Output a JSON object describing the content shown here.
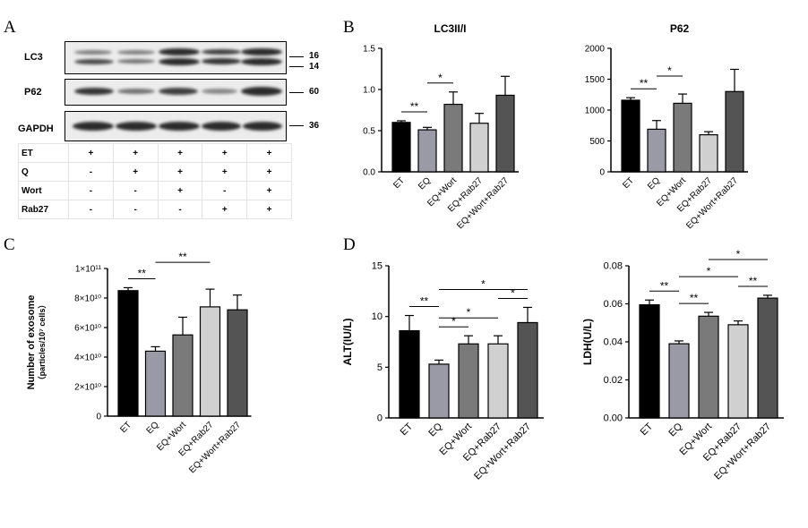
{
  "panel_letters": {
    "a": "A",
    "b": "B",
    "c": "C",
    "d": "D"
  },
  "blot": {
    "rows": [
      {
        "name": "LC3",
        "kda": [
          "16",
          "14"
        ]
      },
      {
        "name": "P62",
        "kda": [
          "60"
        ]
      },
      {
        "name": "GAPDH",
        "kda": [
          "36"
        ]
      }
    ],
    "conditions": [
      {
        "label": "ET",
        "values": [
          "+",
          "+",
          "+",
          "+",
          "+"
        ]
      },
      {
        "label": "Q",
        "values": [
          "-",
          "+",
          "+",
          "+",
          "+"
        ]
      },
      {
        "label": "Wort",
        "values": [
          "-",
          "-",
          "+",
          "-",
          "+"
        ]
      },
      {
        "label": "Rab27",
        "values": [
          "-",
          "-",
          "-",
          "+",
          "+"
        ]
      }
    ]
  },
  "colors": {
    "ET": "#000000",
    "EQ": "#9a9aa6",
    "EQ+Wort": "#7a7a7a",
    "EQ+Rab27": "#d0d0d0",
    "EQ+Wort+Rab27": "#545454"
  },
  "chart_data": [
    {
      "id": "lc3",
      "type": "bar",
      "title": "LC3II/I",
      "ylabel": "",
      "categories": [
        "ET",
        "EQ",
        "EQ+Wort",
        "EQ+Rab27",
        "EQ+Wort+Rab27"
      ],
      "values": [
        0.6,
        0.51,
        0.82,
        0.59,
        0.93
      ],
      "errors": [
        0.02,
        0.03,
        0.15,
        0.12,
        0.23
      ],
      "ylim": [
        0,
        1.5
      ],
      "yticks": [
        "0.0",
        "0.5",
        "1.0",
        "1.5"
      ],
      "significance": [
        {
          "from": "ET",
          "to": "EQ",
          "label": "**"
        },
        {
          "from": "EQ",
          "to": "EQ+Wort",
          "label": "*"
        }
      ]
    },
    {
      "id": "p62",
      "type": "bar",
      "title": "P62",
      "ylabel": "",
      "categories": [
        "ET",
        "EQ",
        "EQ+Wort",
        "EQ+Rab27",
        "EQ+Wort+Rab27"
      ],
      "values": [
        1160,
        690,
        1110,
        600,
        1300
      ],
      "errors": [
        40,
        140,
        150,
        50,
        360
      ],
      "ylim": [
        0,
        2000
      ],
      "yticks": [
        "0",
        "500",
        "1000",
        "1500",
        "2000"
      ],
      "significance": [
        {
          "from": "ET",
          "to": "EQ",
          "label": "**"
        },
        {
          "from": "EQ",
          "to": "EQ+Wort",
          "label": "*"
        }
      ]
    },
    {
      "id": "exo",
      "type": "bar",
      "title": "",
      "ylabel_main": "Number of exosome",
      "ylabel_sub": "（particles/10⁷ cells）",
      "categories": [
        "ET",
        "EQ",
        "EQ+Wort",
        "EQ+Rab27",
        "EQ+Wort+Rab27"
      ],
      "values": [
        85000000000,
        44000000000,
        55000000000,
        74000000000,
        72000000000
      ],
      "errors": [
        2000000000,
        3000000000,
        12000000000,
        12000000000,
        10000000000
      ],
      "ylim": [
        0,
        100000000000
      ],
      "yticks": [
        "0",
        "2×10¹⁰",
        "4×10¹⁰",
        "6×10¹⁰",
        "8×10¹⁰",
        "1×10¹¹"
      ],
      "significance": [
        {
          "from": "ET",
          "to": "EQ",
          "label": "**"
        },
        {
          "from": "EQ",
          "to": "EQ+Rab27",
          "label": "**"
        }
      ]
    },
    {
      "id": "alt",
      "type": "bar",
      "title": "",
      "ylabel": "ALT(IU/L)",
      "categories": [
        "ET",
        "EQ",
        "EQ+Wort",
        "EQ+Rab27",
        "EQ+Wort+Rab27"
      ],
      "values": [
        8.6,
        5.3,
        7.3,
        7.3,
        9.4
      ],
      "errors": [
        1.5,
        0.4,
        0.8,
        0.8,
        1.5
      ],
      "ylim": [
        0,
        15
      ],
      "yticks": [
        "0",
        "5",
        "10",
        "15"
      ],
      "significance": [
        {
          "from": "ET",
          "to": "EQ",
          "label": "**"
        },
        {
          "from": "EQ",
          "to": "EQ+Wort",
          "label": "*"
        },
        {
          "from": "EQ",
          "to": "EQ+Rab27",
          "label": "*"
        },
        {
          "from": "EQ",
          "to": "EQ+Wort+Rab27",
          "label": "*"
        },
        {
          "from": "EQ+Rab27",
          "to": "EQ+Wort+Rab27",
          "label": "*"
        }
      ]
    },
    {
      "id": "ldh",
      "type": "bar",
      "title": "",
      "ylabel": "LDH(U/L)",
      "categories": [
        "ET",
        "EQ",
        "EQ+Wort",
        "EQ+Rab27",
        "EQ+Wort+Rab27"
      ],
      "values": [
        0.0595,
        0.039,
        0.0535,
        0.049,
        0.063
      ],
      "errors": [
        0.0025,
        0.0015,
        0.002,
        0.002,
        0.0015
      ],
      "ylim": [
        0,
        0.08
      ],
      "yticks": [
        "0.00",
        "0.02",
        "0.04",
        "0.06",
        "0.08"
      ],
      "significance": [
        {
          "from": "ET",
          "to": "EQ",
          "label": "**"
        },
        {
          "from": "EQ",
          "to": "EQ+Wort",
          "label": "**"
        },
        {
          "from": "EQ",
          "to": "EQ+Rab27",
          "label": "*"
        },
        {
          "from": "EQ+Rab27",
          "to": "EQ+Wort+Rab27",
          "label": "**"
        },
        {
          "from": "EQ+Wort",
          "to": "EQ+Wort+Rab27",
          "label": "*"
        }
      ]
    }
  ]
}
